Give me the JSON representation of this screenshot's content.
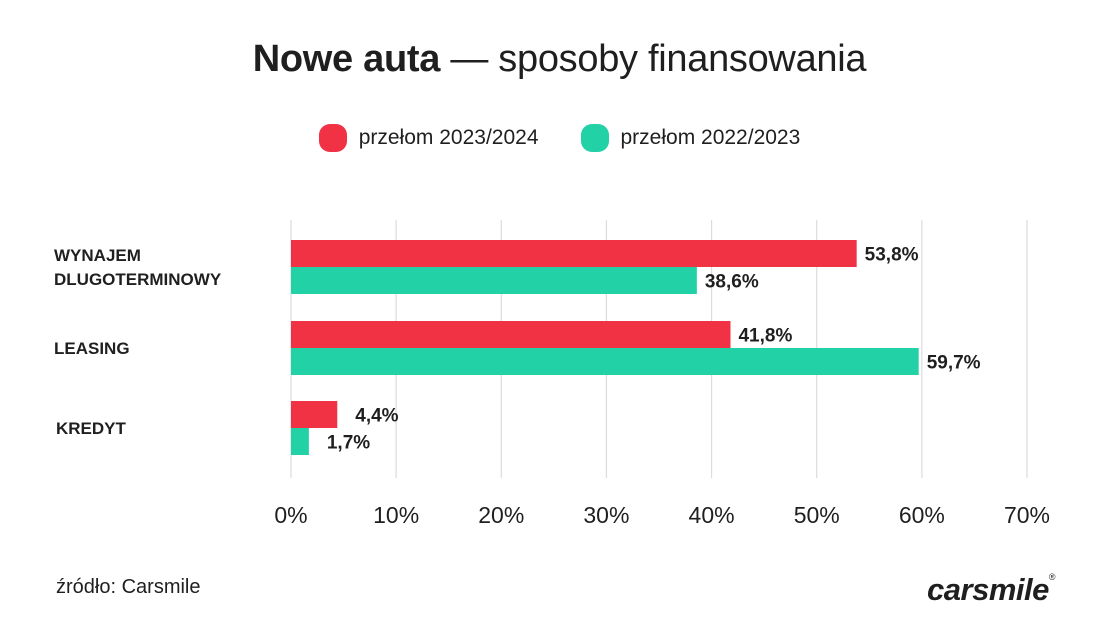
{
  "title": {
    "bold": "Nowe auta",
    "rest": " — sposoby finansowania"
  },
  "source": "źródło: Carsmile",
  "logo": {
    "text": "carsmile",
    "mark": "®"
  },
  "chart_data": {
    "type": "bar",
    "orientation": "horizontal",
    "categories": [
      [
        "WYNAJEM",
        "DLUGOTERMINOWY"
      ],
      [
        "LEASING"
      ],
      [
        "KREDYT"
      ]
    ],
    "series": [
      {
        "name": "przełom 2023/2024",
        "color": "#f03244",
        "values": [
          53.8,
          41.8,
          4.4
        ],
        "labels": [
          "53,8%",
          "41,8%",
          "4,4%"
        ]
      },
      {
        "name": "przełom 2022/2023",
        "color": "#22d1a6",
        "values": [
          38.6,
          59.7,
          1.7
        ],
        "labels": [
          "38,6%",
          "59,7%",
          "1,7%"
        ]
      }
    ],
    "xlim": [
      0,
      70
    ],
    "xticks": [
      0,
      10,
      20,
      30,
      40,
      50,
      60,
      70
    ],
    "xtick_labels": [
      "0%",
      "10%",
      "20%",
      "30%",
      "40%",
      "50%",
      "60%",
      "70%"
    ],
    "grid": true,
    "legend_position": "top-center"
  }
}
